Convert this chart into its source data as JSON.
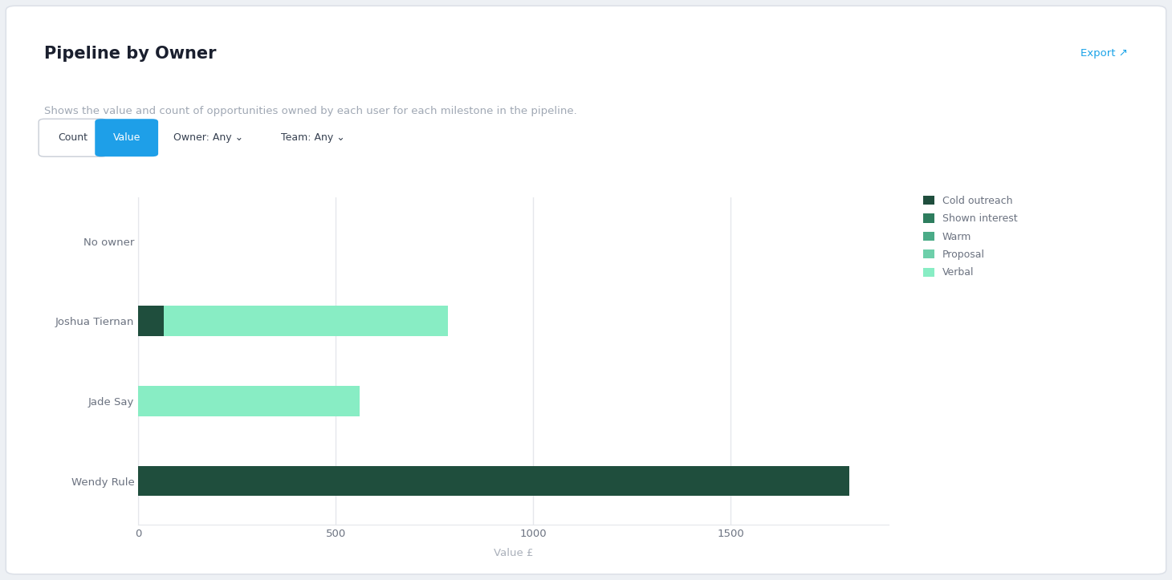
{
  "title": "Pipeline by Owner",
  "subtitle": "Shows the value and count of opportunities owned by each user for each milestone in the pipeline.",
  "xlabel": "Value £",
  "owners": [
    "Wendy Rule",
    "Jade Say",
    "Joshua Tiernan",
    "No owner"
  ],
  "segments": {
    "Cold outreach": {
      "color": "#1f4e3d",
      "values": [
        1800,
        0,
        65,
        0
      ]
    },
    "Shown interest": {
      "color": "#2e7d5e",
      "values": [
        0,
        0,
        0,
        0
      ]
    },
    "Warm": {
      "color": "#4aab87",
      "values": [
        0,
        0,
        0,
        0
      ]
    },
    "Proposal": {
      "color": "#6dcfaa",
      "values": [
        0,
        0,
        0,
        0
      ]
    },
    "Verbal": {
      "color": "#88edc4",
      "values": [
        0,
        560,
        720,
        0
      ]
    }
  },
  "xlim": [
    0,
    1900
  ],
  "xticks": [
    0,
    500,
    1000,
    1500
  ],
  "background_color": "#edf0f4",
  "card_color": "#ffffff",
  "bar_height": 0.38,
  "title_fontsize": 15,
  "subtitle_fontsize": 9.5,
  "axis_label_color": "#aab0ba",
  "tick_label_color": "#6b7280",
  "grid_color": "#e5e7eb",
  "legend_labels": [
    "Cold outreach",
    "Shown interest",
    "Warm",
    "Proposal",
    "Verbal"
  ],
  "legend_colors": [
    "#1f4e3d",
    "#2e7d5e",
    "#4aab87",
    "#6dcfaa",
    "#88edc4"
  ]
}
